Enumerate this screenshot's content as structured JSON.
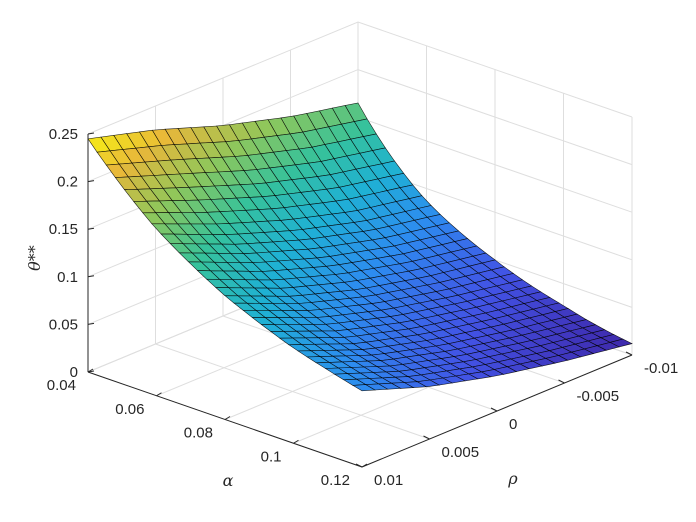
{
  "chart_data": {
    "type": "surface",
    "title": "",
    "xlabel": "α",
    "ylabel": "ρ",
    "zlabel": "θ**",
    "x_ticks": [
      "0.04",
      "0.06",
      "0.08",
      "0.1",
      "0.12"
    ],
    "y_ticks": [
      "0.01",
      "0.005",
      "0",
      "-0.005",
      "-0.01"
    ],
    "z_ticks": [
      "0",
      "0.05",
      "0.1",
      "0.15",
      "0.2",
      "0.25"
    ],
    "xlim": [
      0.04,
      0.12
    ],
    "ylim": [
      -0.01,
      0.01
    ],
    "zlim": [
      0,
      0.25
    ],
    "grid": true,
    "colormap": "parula",
    "surface_samples": {
      "alpha": [
        0.04,
        0.06,
        0.08,
        0.1,
        0.12
      ],
      "rho": [
        -0.01,
        -0.005,
        0,
        0.005,
        0.01
      ],
      "theta": [
        [
          0.165,
          0.087,
          0.05,
          0.027,
          0.012
        ],
        [
          0.18,
          0.1,
          0.062,
          0.039,
          0.023
        ],
        [
          0.2,
          0.12,
          0.078,
          0.053,
          0.037
        ],
        [
          0.225,
          0.145,
          0.1,
          0.072,
          0.055
        ],
        [
          0.245,
          0.175,
          0.13,
          0.1,
          0.08
        ]
      ]
    }
  },
  "colors": {
    "axis": "#262626",
    "grid": "#dedede",
    "mesh": "#000000",
    "colormap_stops": [
      "#3e26a8",
      "#4253e5",
      "#2d8cf0",
      "#1fb1d4",
      "#36c29b",
      "#8fc75b",
      "#e8b73a",
      "#f9fb0e"
    ]
  }
}
